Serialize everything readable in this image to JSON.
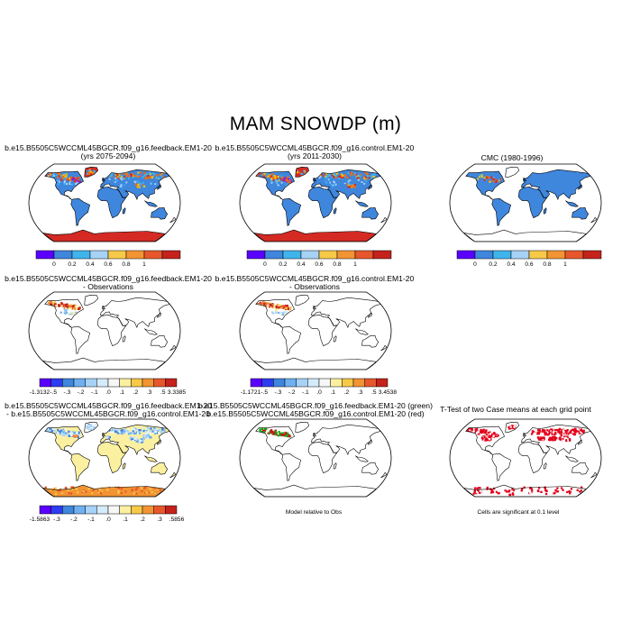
{
  "title": "MAM SNOWDP (m)",
  "colors": {
    "land_light": "#f7f7f7",
    "blue": "#3f86dd",
    "hot": [
      "#ff6a00",
      "#d42a23",
      "#ffc400",
      "#7a1cff"
    ],
    "red_map": "#e3001a",
    "green": "#1aa616",
    "diff_scale": [
      "#5a00ff",
      "#2d3cf0",
      "#3f86dd",
      "#6fb0f0",
      "#a6d2f7",
      "#d4ebfb",
      "#f7f7f7",
      "#fbf0a0",
      "#f6c948",
      "#f29433",
      "#e7572c",
      "#c4221b"
    ],
    "abs_scale": [
      "#5a00ff",
      "#3f86dd",
      "#40b4ec",
      "#a6d2f7",
      "#f6c948",
      "#f29433",
      "#e7572c",
      "#c4221b"
    ]
  },
  "panels": {
    "p1": {
      "line1": "b.e15.B5505C5WCCML45BGCR.f09_g16.feedback.EM1-20",
      "line2": "(yrs 2075-2094)"
    },
    "p2": {
      "line1": "b.e15.B5505C5WCCML45BGCR.f09_g16.control.EM1-20",
      "line2": "(yrs 2011-2030)"
    },
    "p3": {
      "line1": "CMC (1980-1996)"
    },
    "p4": {
      "line1": "b.e15.B5505C5WCCML45BGCR.f09_g16.feedback.EM1-20",
      "line2": "- Observations"
    },
    "p5": {
      "line1": "b.e15.B5505C5WCCML45BGCR.f09_g16.control.EM1-20",
      "line2": "- Observations"
    },
    "p7": {
      "line1": "b.e15.B5505C5WCCML45BGCR.f09_g16.feedback.EM1-20",
      "line2": "- b.e15.B5505C5WCCML45BGCR.f09_g16.control.EM1-20"
    },
    "p8": {
      "line1": "b.e15.B5505C5WCCML45BGCR.f09_g16.feedback.EM1-20 (green)",
      "line2": "b.e15.B5505C5WCCML45BGCR.f09_g16.control.EM1-20 (red)",
      "note": "Model relative to Obs"
    },
    "p9": {
      "line1": "T-Test of two Case means at each grid point",
      "note": "Cells are significant at 0.1 level"
    }
  },
  "colorbars": {
    "abs": {
      "labels": [
        "0",
        "0.2",
        "0.4",
        "0.6",
        "0.8",
        "1"
      ]
    },
    "diff4": {
      "labels": [
        "-1.3132",
        "-.5",
        "-.3",
        "-.2",
        "-.1",
        ".0",
        ".1",
        ".2",
        ".3",
        ".5",
        "3.3385"
      ]
    },
    "diff5": {
      "labels": [
        "-1.1721",
        "-.5",
        "-.3",
        "-.2",
        "-.1",
        ".0",
        ".1",
        ".2",
        ".3",
        ".5",
        "3.4538"
      ]
    },
    "diff7": {
      "labels": [
        "-1.5863",
        "-.3",
        "-.2",
        "-.1",
        ".0",
        ".1",
        ".2",
        ".3",
        ".5856"
      ]
    }
  }
}
